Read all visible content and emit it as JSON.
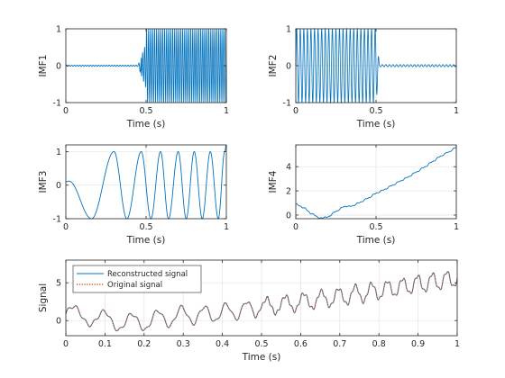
{
  "chart_data": [
    {
      "type": "line",
      "ylabel": "IMF1",
      "xlabel": "Time (s)",
      "xlim": [
        0,
        1
      ],
      "ylim": [
        -1,
        1
      ],
      "xticks": [
        0,
        0.5,
        1
      ],
      "yticks": [
        -1,
        0,
        1
      ],
      "xtick_labels": [
        "0",
        "0.5",
        "1"
      ],
      "ytick_labels": [
        "-1",
        "0",
        "1"
      ],
      "grid": true,
      "color": "#0072BD",
      "series": [
        {
          "description_of_shape": "flat at 0 for t<0.48, then oscillation with amplitude ~1 at high frequency (~80 Hz)",
          "segments": [
            {
              "t_start": 0,
              "t_end": 0.47,
              "amplitude": 0.02,
              "frequency_hz": 60
            },
            {
              "t_start": 0.47,
              "t_end": 0.5,
              "amplitude": 0.6,
              "frequency_hz": 80
            },
            {
              "t_start": 0.5,
              "t_end": 1.0,
              "amplitude": 1.0,
              "frequency_hz": 80
            }
          ]
        }
      ]
    },
    {
      "type": "line",
      "ylabel": "IMF2",
      "xlabel": "Time (s)",
      "xlim": [
        0,
        1
      ],
      "ylim": [
        -1,
        1
      ],
      "xticks": [
        0,
        0.5,
        1
      ],
      "yticks": [
        -1,
        0,
        1
      ],
      "xtick_labels": [
        "0",
        "0.5",
        "1"
      ],
      "ytick_labels": [
        "-1",
        "0",
        "1"
      ],
      "grid": true,
      "color": "#0072BD",
      "series": [
        {
          "description_of_shape": "oscillation with amplitude ~1 at ~45 Hz for t<0.5, then near flat",
          "segments": [
            {
              "t_start": 0,
              "t_end": 0.5,
              "amplitude": 1.0,
              "frequency_hz": 45
            },
            {
              "t_start": 0.5,
              "t_end": 1.0,
              "amplitude": 0.03,
              "frequency_hz": 45
            }
          ]
        }
      ]
    },
    {
      "type": "line",
      "ylabel": "IMF3",
      "xlabel": "Time (s)",
      "xlim": [
        0,
        1
      ],
      "ylim": [
        -1,
        1.2
      ],
      "xticks": [
        0,
        0.5,
        1
      ],
      "yticks": [
        -1,
        0,
        1
      ],
      "xtick_labels": [
        "0",
        "0.5",
        "1"
      ],
      "ytick_labels": [
        "-1",
        "0",
        "1"
      ],
      "grid": true,
      "color": "#0072BD",
      "series": [
        {
          "description_of_shape": "chirp oscillation with amplitude ~1, frequency increasing from ~3 Hz to ~12 Hz",
          "peak_times": [
            0.3,
            0.47,
            0.59,
            0.7,
            0.8,
            0.9,
            0.99
          ],
          "trough_times": [
            0.16,
            0.38,
            0.53,
            0.64,
            0.75,
            0.85,
            0.95
          ]
        }
      ]
    },
    {
      "type": "line",
      "ylabel": "IMF4",
      "xlabel": "Time (s)",
      "xlim": [
        0,
        1
      ],
      "ylim": [
        -0.3,
        5.8
      ],
      "xticks": [
        0,
        0.5,
        1
      ],
      "yticks": [
        0,
        2,
        4
      ],
      "xtick_labels": [
        "0",
        "0.5",
        "1"
      ],
      "ytick_labels": [
        "0",
        "2",
        "4"
      ],
      "grid": true,
      "color": "#0072BD",
      "series": [
        {
          "x": [
            0,
            0.05,
            0.1,
            0.15,
            0.2,
            0.25,
            0.3,
            0.35,
            0.4,
            0.45,
            0.5,
            0.55,
            0.6,
            0.65,
            0.7,
            0.75,
            0.8,
            0.85,
            0.9,
            0.95,
            1.0
          ],
          "y": [
            0.9,
            0.6,
            0.1,
            -0.25,
            -0.15,
            0.3,
            0.7,
            0.75,
            1.05,
            1.4,
            1.8,
            2.1,
            2.45,
            2.8,
            3.15,
            3.55,
            3.95,
            4.4,
            4.85,
            5.2,
            5.6
          ]
        }
      ]
    },
    {
      "type": "line",
      "ylabel": "Signal",
      "xlabel": "Time (s)",
      "xlim": [
        0,
        1
      ],
      "ylim": [
        -2,
        8
      ],
      "xticks": [
        0,
        0.1,
        0.2,
        0.3,
        0.4,
        0.5,
        0.6,
        0.7,
        0.8,
        0.9,
        1
      ],
      "yticks": [
        0,
        5
      ],
      "xtick_labels": [
        "0",
        "0.1",
        "0.2",
        "0.3",
        "0.4",
        "0.5",
        "0.6",
        "0.7",
        "0.8",
        "0.9",
        "1"
      ],
      "ytick_labels": [
        "0",
        "5"
      ],
      "grid": true,
      "legend": {
        "location": "top-left",
        "entries": [
          {
            "label": "Reconstructed signal",
            "color": "#0072BD",
            "style": "solid"
          },
          {
            "label": "Original signal",
            "color": "#D95319",
            "style": "dotted"
          }
        ]
      },
      "series": [
        {
          "name": "Reconstructed signal",
          "composition": "sum of IMF1 + IMF2 + IMF3 + IMF4"
        },
        {
          "name": "Original signal",
          "composition": "same as reconstructed (overlaps)"
        }
      ]
    }
  ]
}
